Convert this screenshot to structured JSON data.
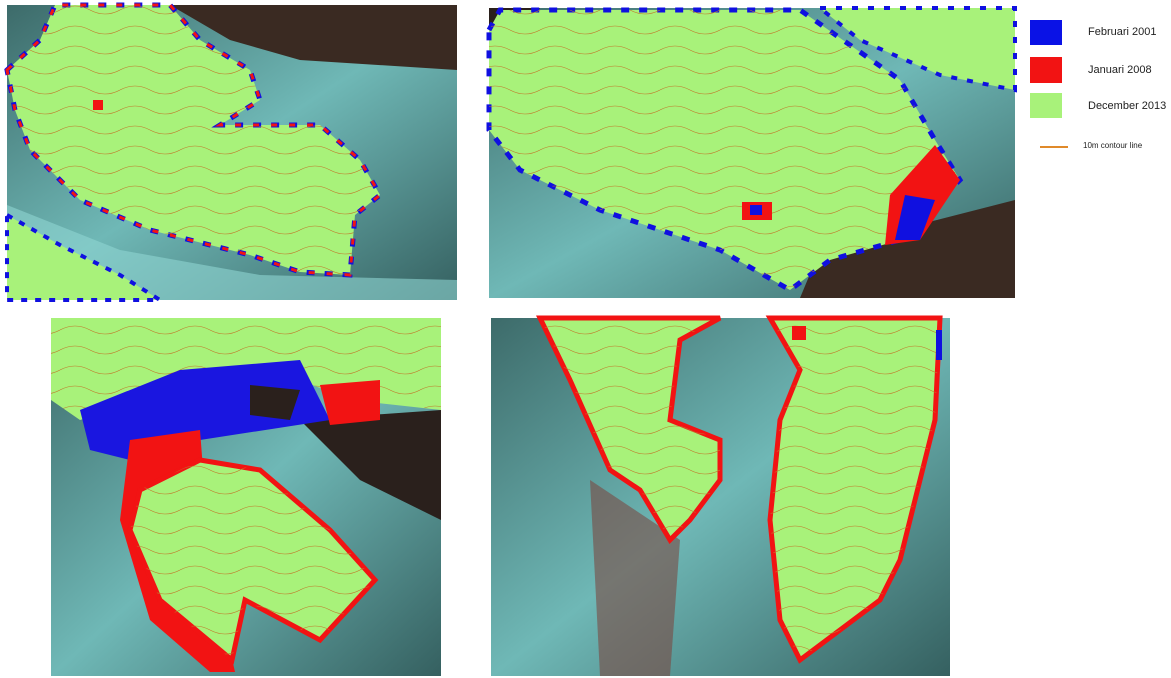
{
  "legend": {
    "items": [
      {
        "label": "Februari 2001",
        "color": "#0a12e6"
      },
      {
        "label": "Januari 2008",
        "color": "#f21313"
      },
      {
        "label": "December 2013",
        "color": "#a8f27a"
      }
    ],
    "contour": {
      "label": "10m contour line",
      "color": "#e08a2a"
    }
  }
}
